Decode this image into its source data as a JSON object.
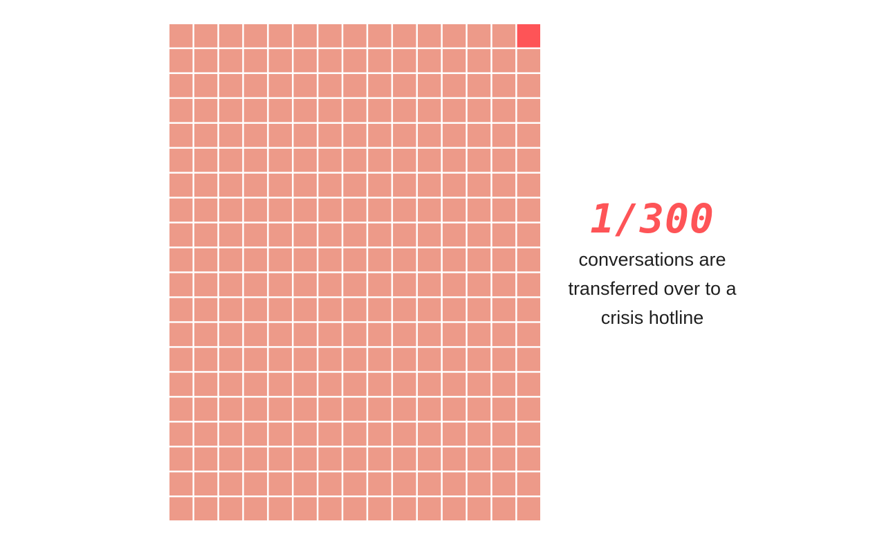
{
  "chart_data": {
    "type": "waffle",
    "total": 300,
    "highlighted": 1,
    "rows": 20,
    "columns": 15,
    "highlight_position": "top-right",
    "colors": {
      "base": "#ed9a89",
      "highlight": "#fe5457",
      "grid_lines": "#ffffff"
    }
  },
  "stat": {
    "value": "1/300",
    "caption": "conversations are transferred over to a crisis hotline",
    "color": "#fe5457"
  }
}
